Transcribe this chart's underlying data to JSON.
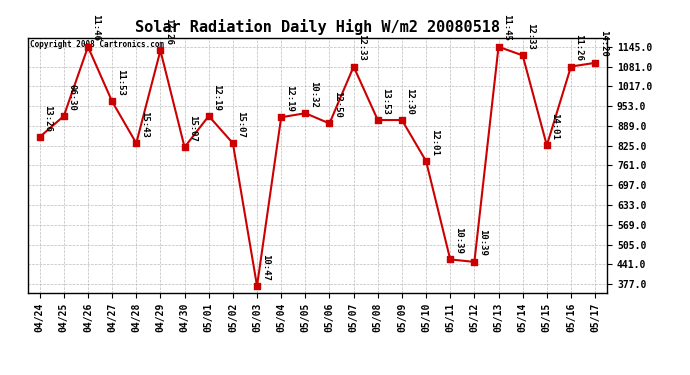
{
  "title": "Solar Radiation Daily High W/m2 20080518",
  "copyright": "Copyright 2008 Cartronics.com",
  "dates": [
    "04/24",
    "04/25",
    "04/26",
    "04/27",
    "04/28",
    "04/29",
    "04/30",
    "05/01",
    "05/02",
    "05/03",
    "05/04",
    "05/05",
    "05/06",
    "05/07",
    "05/08",
    "05/09",
    "05/10",
    "05/11",
    "05/12",
    "05/13",
    "05/14",
    "05/15",
    "05/16",
    "05/17"
  ],
  "values": [
    853,
    921,
    1145,
    968,
    833,
    1133,
    820,
    921,
    833,
    371,
    917,
    930,
    897,
    1081,
    908,
    908,
    775,
    457,
    449,
    1145,
    1117,
    826,
    1081,
    1093
  ],
  "times": [
    "13:26",
    "06:30",
    "11:46",
    "11:53",
    "15:43",
    "12:26",
    "15:07",
    "12:19",
    "15:07",
    "10:47",
    "12:19",
    "10:32",
    "12:50",
    "12:33",
    "13:53",
    "12:30",
    "12:01",
    "10:39",
    "10:39",
    "11:45",
    "12:33",
    "14:01",
    "11:26",
    "14:20"
  ],
  "line_color": "#cc0000",
  "marker_color": "#cc0000",
  "bg_color": "#ffffff",
  "grid_color": "#bbbbbb",
  "yticks": [
    377.0,
    441.0,
    505.0,
    569.0,
    633.0,
    697.0,
    761.0,
    825.0,
    889.0,
    953.0,
    1017.0,
    1081.0,
    1145.0
  ],
  "ylim": [
    350,
    1175
  ],
  "title_fontsize": 11,
  "tick_fontsize": 7,
  "annotation_fontsize": 6.5,
  "figwidth": 6.9,
  "figheight": 3.75,
  "dpi": 100
}
